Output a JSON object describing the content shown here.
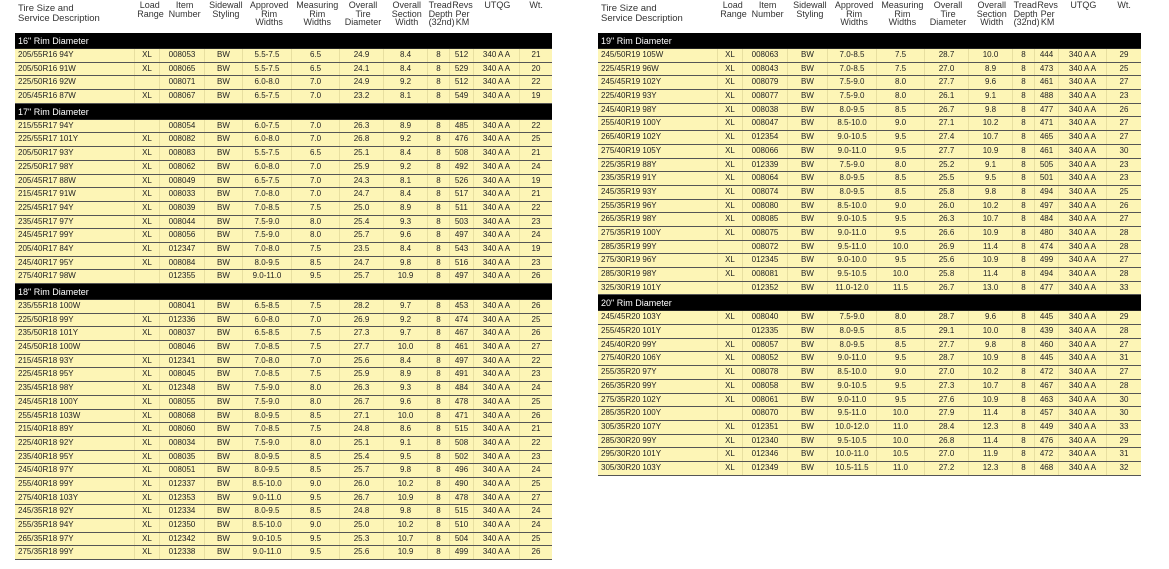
{
  "columns": [
    "Tire Size and\nService Description",
    "Load\nRange",
    "Item\nNumber",
    "Sidewall\nStyling",
    "Approved\nRim\nWidths",
    "Measuring\nRim\nWidths",
    "Overall\nTire\nDiameter",
    "Overall\nSection\nWidth",
    "Tread\nDepth\n(32nd)",
    "Revs\nPer\nKM",
    "UTQG",
    "Wt."
  ],
  "left_sections": [
    {
      "title": "16\" Rim Diameter",
      "rows": [
        [
          "205/55R16 94Y",
          "XL",
          "008053",
          "BW",
          "5.5-7.5",
          "6.5",
          "24.9",
          "8.4",
          "8",
          "512",
          "340 A A",
          "21"
        ],
        [
          "205/50R16 91W",
          "XL",
          "008065",
          "BW",
          "5.5-7.5",
          "6.5",
          "24.1",
          "8.4",
          "8",
          "529",
          "340 A A",
          "20"
        ],
        [
          "225/50R16 92W",
          "",
          "008071",
          "BW",
          "6.0-8.0",
          "7.0",
          "24.9",
          "9.2",
          "8",
          "512",
          "340 A A",
          "22"
        ],
        [
          "205/45R16 87W",
          "XL",
          "008067",
          "BW",
          "6.5-7.5",
          "7.0",
          "23.2",
          "8.1",
          "8",
          "549",
          "340 A A",
          "19"
        ]
      ]
    },
    {
      "title": "17\" Rim Diameter",
      "rows": [
        [
          "215/55R17 94Y",
          "",
          "008054",
          "BW",
          "6.0-7.5",
          "7.0",
          "26.3",
          "8.9",
          "8",
          "485",
          "340 A A",
          "22"
        ],
        [
          "225/55R17 101Y",
          "XL",
          "008082",
          "BW",
          "6.0-8.0",
          "7.0",
          "26.8",
          "9.2",
          "8",
          "476",
          "340 A A",
          "25"
        ],
        [
          "205/50R17 93Y",
          "XL",
          "008083",
          "BW",
          "5.5-7.5",
          "6.5",
          "25.1",
          "8.4",
          "8",
          "508",
          "340 A A",
          "21"
        ],
        [
          "225/50R17 98Y",
          "XL",
          "008062",
          "BW",
          "6.0-8.0",
          "7.0",
          "25.9",
          "9.2",
          "8",
          "492",
          "340 A A",
          "24"
        ],
        [
          "205/45R17 88W",
          "XL",
          "008049",
          "BW",
          "6.5-7.5",
          "7.0",
          "24.3",
          "8.1",
          "8",
          "526",
          "340 A A",
          "19"
        ],
        [
          "215/45R17 91W",
          "XL",
          "008033",
          "BW",
          "7.0-8.0",
          "7.0",
          "24.7",
          "8.4",
          "8",
          "517",
          "340 A A",
          "21"
        ],
        [
          "225/45R17 94Y",
          "XL",
          "008039",
          "BW",
          "7.0-8.5",
          "7.5",
          "25.0",
          "8.9",
          "8",
          "511",
          "340 A A",
          "22"
        ],
        [
          "235/45R17 97Y",
          "XL",
          "008044",
          "BW",
          "7.5-9.0",
          "8.0",
          "25.4",
          "9.3",
          "8",
          "503",
          "340 A A",
          "23"
        ],
        [
          "245/45R17 99Y",
          "XL",
          "008056",
          "BW",
          "7.5-9.0",
          "8.0",
          "25.7",
          "9.6",
          "8",
          "497",
          "340 A A",
          "24"
        ],
        [
          "205/40R17 84Y",
          "XL",
          "012347",
          "BW",
          "7.0-8.0",
          "7.5",
          "23.5",
          "8.4",
          "8",
          "543",
          "340 A A",
          "19"
        ],
        [
          "245/40R17 95Y",
          "XL",
          "008084",
          "BW",
          "8.0-9.5",
          "8.5",
          "24.7",
          "9.8",
          "8",
          "516",
          "340 A A",
          "23"
        ],
        [
          "275/40R17 98W",
          "",
          "012355",
          "BW",
          "9.0-11.0",
          "9.5",
          "25.7",
          "10.9",
          "8",
          "497",
          "340 A A",
          "26"
        ]
      ]
    },
    {
      "title": "18\" Rim Diameter",
      "rows": [
        [
          "235/55R18 100W",
          "",
          "008041",
          "BW",
          "6.5-8.5",
          "7.5",
          "28.2",
          "9.7",
          "8",
          "453",
          "340 A A",
          "26"
        ],
        [
          "225/50R18 99Y",
          "XL",
          "012336",
          "BW",
          "6.0-8.0",
          "7.0",
          "26.9",
          "9.2",
          "8",
          "474",
          "340 A A",
          "25"
        ],
        [
          "235/50R18 101Y",
          "XL",
          "008037",
          "BW",
          "6.5-8.5",
          "7.5",
          "27.3",
          "9.7",
          "8",
          "467",
          "340 A A",
          "26"
        ],
        [
          "245/50R18 100W",
          "",
          "008046",
          "BW",
          "7.0-8.5",
          "7.5",
          "27.7",
          "10.0",
          "8",
          "461",
          "340 A A",
          "27"
        ],
        [
          "215/45R18 93Y",
          "XL",
          "012341",
          "BW",
          "7.0-8.0",
          "7.0",
          "25.6",
          "8.4",
          "8",
          "497",
          "340 A A",
          "22"
        ],
        [
          "225/45R18 95Y",
          "XL",
          "008045",
          "BW",
          "7.0-8.5",
          "7.5",
          "25.9",
          "8.9",
          "8",
          "491",
          "340 A A",
          "23"
        ],
        [
          "235/45R18 98Y",
          "XL",
          "012348",
          "BW",
          "7.5-9.0",
          "8.0",
          "26.3",
          "9.3",
          "8",
          "484",
          "340 A A",
          "24"
        ],
        [
          "245/45R18 100Y",
          "XL",
          "008055",
          "BW",
          "7.5-9.0",
          "8.0",
          "26.7",
          "9.6",
          "8",
          "478",
          "340 A A",
          "25"
        ],
        [
          "255/45R18 103W",
          "XL",
          "008068",
          "BW",
          "8.0-9.5",
          "8.5",
          "27.1",
          "10.0",
          "8",
          "471",
          "340 A A",
          "26"
        ],
        [
          "215/40R18 89Y",
          "XL",
          "008060",
          "BW",
          "7.0-8.5",
          "7.5",
          "24.8",
          "8.6",
          "8",
          "515",
          "340 A A",
          "21"
        ],
        [
          "225/40R18 92Y",
          "XL",
          "008034",
          "BW",
          "7.5-9.0",
          "8.0",
          "25.1",
          "9.1",
          "8",
          "508",
          "340 A A",
          "22"
        ],
        [
          "235/40R18 95Y",
          "XL",
          "008035",
          "BW",
          "8.0-9.5",
          "8.5",
          "25.4",
          "9.5",
          "8",
          "502",
          "340 A A",
          "23"
        ],
        [
          "245/40R18 97Y",
          "XL",
          "008051",
          "BW",
          "8.0-9.5",
          "8.5",
          "25.7",
          "9.8",
          "8",
          "496",
          "340 A A",
          "24"
        ],
        [
          "255/40R18 99Y",
          "XL",
          "012337",
          "BW",
          "8.5-10.0",
          "9.0",
          "26.0",
          "10.2",
          "8",
          "490",
          "340 A A",
          "25"
        ],
        [
          "275/40R18 103Y",
          "XL",
          "012353",
          "BW",
          "9.0-11.0",
          "9.5",
          "26.7",
          "10.9",
          "8",
          "478",
          "340 A A",
          "27"
        ],
        [
          "245/35R18 92Y",
          "XL",
          "012334",
          "BW",
          "8.0-9.5",
          "8.5",
          "24.8",
          "9.8",
          "8",
          "515",
          "340 A A",
          "24"
        ],
        [
          "255/35R18 94Y",
          "XL",
          "012350",
          "BW",
          "8.5-10.0",
          "9.0",
          "25.0",
          "10.2",
          "8",
          "510",
          "340 A A",
          "24"
        ],
        [
          "265/35R18 97Y",
          "XL",
          "012342",
          "BW",
          "9.0-10.5",
          "9.5",
          "25.3",
          "10.7",
          "8",
          "504",
          "340 A A",
          "25"
        ],
        [
          "275/35R18 99Y",
          "XL",
          "012338",
          "BW",
          "9.0-11.0",
          "9.5",
          "25.6",
          "10.9",
          "8",
          "499",
          "340 A A",
          "26"
        ]
      ]
    }
  ],
  "right_sections": [
    {
      "title": "19\" Rim Diameter",
      "rows": [
        [
          "245/50R19 105W",
          "XL",
          "008063",
          "BW",
          "7.0-8.5",
          "7.5",
          "28.7",
          "10.0",
          "8",
          "444",
          "340 A A",
          "29"
        ],
        [
          "225/45R19 96W",
          "XL",
          "008043",
          "BW",
          "7.0-8.5",
          "7.5",
          "27.0",
          "8.9",
          "8",
          "473",
          "340 A A",
          "25"
        ],
        [
          "245/45R19 102Y",
          "XL",
          "008079",
          "BW",
          "7.5-9.0",
          "8.0",
          "27.7",
          "9.6",
          "8",
          "461",
          "340 A A",
          "27"
        ],
        [
          "225/40R19 93Y",
          "XL",
          "008077",
          "BW",
          "7.5-9.0",
          "8.0",
          "26.1",
          "9.1",
          "8",
          "488",
          "340 A A",
          "23"
        ],
        [
          "245/40R19 98Y",
          "XL",
          "008038",
          "BW",
          "8.0-9.5",
          "8.5",
          "26.7",
          "9.8",
          "8",
          "477",
          "340 A A",
          "26"
        ],
        [
          "255/40R19 100Y",
          "XL",
          "008047",
          "BW",
          "8.5-10.0",
          "9.0",
          "27.1",
          "10.2",
          "8",
          "471",
          "340 A A",
          "27"
        ],
        [
          "265/40R19 102Y",
          "XL",
          "012354",
          "BW",
          "9.0-10.5",
          "9.5",
          "27.4",
          "10.7",
          "8",
          "465",
          "340 A A",
          "27"
        ],
        [
          "275/40R19 105Y",
          "XL",
          "008066",
          "BW",
          "9.0-11.0",
          "9.5",
          "27.7",
          "10.9",
          "8",
          "461",
          "340 A A",
          "30"
        ],
        [
          "225/35R19 88Y",
          "XL",
          "012339",
          "BW",
          "7.5-9.0",
          "8.0",
          "25.2",
          "9.1",
          "8",
          "505",
          "340 A A",
          "23"
        ],
        [
          "235/35R19 91Y",
          "XL",
          "008064",
          "BW",
          "8.0-9.5",
          "8.5",
          "25.5",
          "9.5",
          "8",
          "501",
          "340 A A",
          "23"
        ],
        [
          "245/35R19 93Y",
          "XL",
          "008074",
          "BW",
          "8.0-9.5",
          "8.5",
          "25.8",
          "9.8",
          "8",
          "494",
          "340 A A",
          "25"
        ],
        [
          "255/35R19 96Y",
          "XL",
          "008080",
          "BW",
          "8.5-10.0",
          "9.0",
          "26.0",
          "10.2",
          "8",
          "497",
          "340 A A",
          "26"
        ],
        [
          "265/35R19 98Y",
          "XL",
          "008085",
          "BW",
          "9.0-10.5",
          "9.5",
          "26.3",
          "10.7",
          "8",
          "484",
          "340 A A",
          "27"
        ],
        [
          "275/35R19 100Y",
          "XL",
          "008075",
          "BW",
          "9.0-11.0",
          "9.5",
          "26.6",
          "10.9",
          "8",
          "480",
          "340 A A",
          "28"
        ],
        [
          "285/35R19 99Y",
          "",
          "008072",
          "BW",
          "9.5-11.0",
          "10.0",
          "26.9",
          "11.4",
          "8",
          "474",
          "340 A A",
          "28"
        ],
        [
          "275/30R19 96Y",
          "XL",
          "012345",
          "BW",
          "9.0-10.0",
          "9.5",
          "25.6",
          "10.9",
          "8",
          "499",
          "340 A A",
          "27"
        ],
        [
          "285/30R19 98Y",
          "XL",
          "008081",
          "BW",
          "9.5-10.5",
          "10.0",
          "25.8",
          "11.4",
          "8",
          "494",
          "340 A A",
          "28"
        ],
        [
          "325/30R19 101Y",
          "",
          "012352",
          "BW",
          "11.0-12.0",
          "11.5",
          "26.7",
          "13.0",
          "8",
          "477",
          "340 A A",
          "33"
        ]
      ]
    },
    {
      "title": "20\" Rim Diameter",
      "rows": [
        [
          "245/45R20 103Y",
          "XL",
          "008040",
          "BW",
          "7.5-9.0",
          "8.0",
          "28.7",
          "9.6",
          "8",
          "445",
          "340 A A",
          "29"
        ],
        [
          "255/45R20 101Y",
          "",
          "012335",
          "BW",
          "8.0-9.5",
          "8.5",
          "29.1",
          "10.0",
          "8",
          "439",
          "340 A A",
          "28"
        ],
        [
          "245/40R20 99Y",
          "XL",
          "008057",
          "BW",
          "8.0-9.5",
          "8.5",
          "27.7",
          "9.8",
          "8",
          "460",
          "340 A A",
          "27"
        ],
        [
          "275/40R20 106Y",
          "XL",
          "008052",
          "BW",
          "9.0-11.0",
          "9.5",
          "28.7",
          "10.9",
          "8",
          "445",
          "340 A A",
          "31"
        ],
        [
          "255/35R20 97Y",
          "XL",
          "008078",
          "BW",
          "8.5-10.0",
          "9.0",
          "27.0",
          "10.2",
          "8",
          "472",
          "340 A A",
          "27"
        ],
        [
          "265/35R20 99Y",
          "XL",
          "008058",
          "BW",
          "9.0-10.5",
          "9.5",
          "27.3",
          "10.7",
          "8",
          "467",
          "340 A A",
          "28"
        ],
        [
          "275/35R20 102Y",
          "XL",
          "008061",
          "BW",
          "9.0-11.0",
          "9.5",
          "27.6",
          "10.9",
          "8",
          "463",
          "340 A A",
          "30"
        ],
        [
          "285/35R20 100Y",
          "",
          "008070",
          "BW",
          "9.5-11.0",
          "10.0",
          "27.9",
          "11.4",
          "8",
          "457",
          "340 A A",
          "30"
        ],
        [
          "305/35R20 107Y",
          "XL",
          "012351",
          "BW",
          "10.0-12.0",
          "11.0",
          "28.4",
          "12.3",
          "8",
          "449",
          "340 A A",
          "33"
        ],
        [
          "285/30R20 99Y",
          "XL",
          "012340",
          "BW",
          "9.5-10.5",
          "10.0",
          "26.8",
          "11.4",
          "8",
          "476",
          "340 A A",
          "29"
        ],
        [
          "295/30R20 101Y",
          "XL",
          "012346",
          "BW",
          "10.0-11.0",
          "10.5",
          "27.0",
          "11.9",
          "8",
          "472",
          "340 A A",
          "31"
        ],
        [
          "305/30R20 103Y",
          "XL",
          "012349",
          "BW",
          "10.5-11.5",
          "11.0",
          "27.2",
          "12.3",
          "8",
          "468",
          "340 A A",
          "32"
        ]
      ]
    }
  ],
  "colors": {
    "row_bg": "#fdf5b6",
    "section_bar": "#000000"
  }
}
